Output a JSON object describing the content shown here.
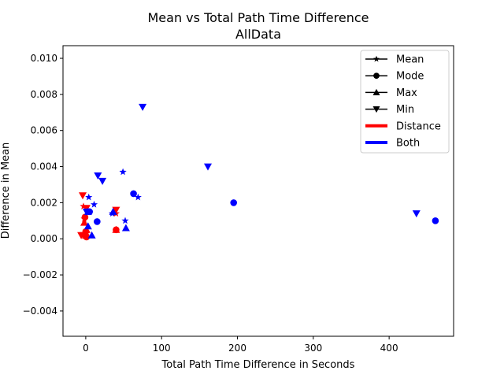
{
  "chart_data": {
    "type": "scatter",
    "title": "Mean vs Total Path Time Difference",
    "subtitle": "AllData",
    "xlabel": "Total Path Time Difference in Seconds",
    "ylabel": "Difference in Mean",
    "xlim": [
      -30,
      485
    ],
    "ylim": [
      -0.0054,
      0.0107
    ],
    "x_ticks": [
      0,
      100,
      200,
      300,
      400
    ],
    "x_tick_labels": [
      "0",
      "100",
      "200",
      "300",
      "400"
    ],
    "y_ticks": [
      -0.004,
      -0.002,
      0.0,
      0.002,
      0.004,
      0.006,
      0.008,
      0.01
    ],
    "y_tick_labels": [
      "−0.004",
      "−0.002",
      "0.000",
      "0.002",
      "0.004",
      "0.006",
      "0.008",
      "0.010"
    ],
    "grid": false,
    "legend": {
      "placement": "top-right",
      "entries": [
        {
          "label": "Mean",
          "kind": "marker",
          "marker": "star"
        },
        {
          "label": "Mode",
          "kind": "marker",
          "marker": "circle"
        },
        {
          "label": "Max",
          "kind": "marker",
          "marker": "triangle-up"
        },
        {
          "label": "Min",
          "kind": "marker",
          "marker": "triangle-down"
        },
        {
          "label": "Distance",
          "kind": "color",
          "color": "#ff0000"
        },
        {
          "label": "Both",
          "kind": "color",
          "color": "#0000ff"
        }
      ]
    },
    "colors": {
      "Distance": "#ff0000",
      "Both": "#0000ff"
    },
    "series": [
      {
        "group": "Distance",
        "marker": "star",
        "points": [
          [
            -3,
            0.0018
          ],
          [
            -2,
            0.0011
          ],
          [
            0,
            0.0002
          ],
          [
            40,
            0.0014
          ]
        ]
      },
      {
        "group": "Distance",
        "marker": "circle",
        "points": [
          [
            -1,
            0.0012
          ],
          [
            0,
            0.0004
          ],
          [
            1,
            0.0001
          ],
          [
            40,
            0.0005
          ]
        ]
      },
      {
        "group": "Distance",
        "marker": "triangle-up",
        "points": [
          [
            -2,
            0.0009
          ],
          [
            0,
            0.0002
          ],
          [
            1,
            0.0005
          ],
          [
            40,
            0.0005
          ]
        ]
      },
      {
        "group": "Distance",
        "marker": "triangle-down",
        "points": [
          [
            -4,
            0.0024
          ],
          [
            1,
            0.0017
          ],
          [
            -6,
            0.0002
          ],
          [
            -3,
            0.0002
          ],
          [
            40,
            0.0016
          ]
        ]
      },
      {
        "group": "Both",
        "marker": "star",
        "points": [
          [
            4,
            0.0023
          ],
          [
            11,
            0.0019
          ],
          [
            49,
            0.0037
          ],
          [
            52,
            0.001
          ],
          [
            69,
            0.0023
          ],
          [
            35,
            0.0014
          ]
        ]
      },
      {
        "group": "Both",
        "marker": "circle",
        "points": [
          [
            5,
            0.0015
          ],
          [
            15,
            0.00095
          ],
          [
            63,
            0.0025
          ],
          [
            195,
            0.002
          ],
          [
            461,
            0.001
          ]
        ]
      },
      {
        "group": "Both",
        "marker": "triangle-up",
        "points": [
          [
            3,
            0.0007
          ],
          [
            8,
            0.0002
          ],
          [
            36,
            0.0015
          ],
          [
            53,
            0.0006
          ],
          [
            3,
            0.0015
          ]
        ]
      },
      {
        "group": "Both",
        "marker": "triangle-down",
        "points": [
          [
            16,
            0.0035
          ],
          [
            22,
            0.0032
          ],
          [
            75,
            0.0073
          ],
          [
            161,
            0.004
          ],
          [
            436,
            0.0014
          ],
          [
            1,
            0.0015
          ]
        ]
      }
    ]
  }
}
